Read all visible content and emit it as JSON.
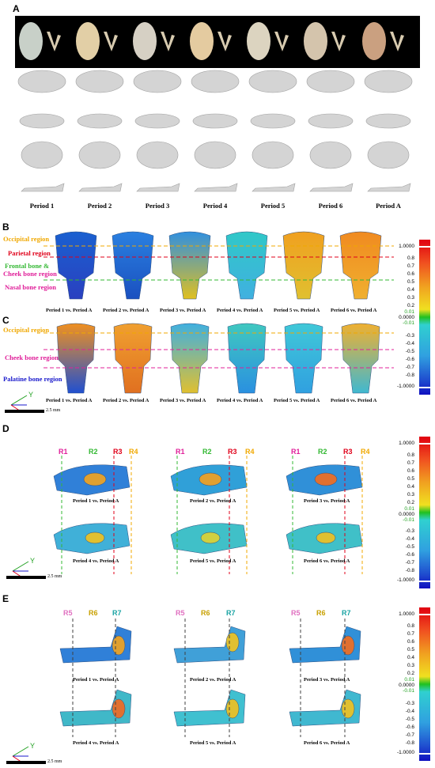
{
  "panels": {
    "A": {
      "letter": "A",
      "periods": [
        "Period 1",
        "Period 2",
        "Period 3",
        "Period 4",
        "Period 5",
        "Period 6",
        "Period A"
      ]
    },
    "B": {
      "letter": "B",
      "regions": [
        "Occipital region",
        "Parietal region",
        "Frontal bone &",
        "Cheek bone region",
        "Nasal bone region"
      ],
      "comparisons": [
        "Period 1 vs. Period A",
        "Period 2 vs. Period A",
        "Period 3 vs. Period A",
        "Period 4 vs. Period A",
        "Period 5 vs. Period A",
        "Period 6 vs. Period A"
      ]
    },
    "C": {
      "letter": "C",
      "regions": [
        "Occipital region",
        "Cheek bone region",
        "Palatine bone region"
      ],
      "comparisons": [
        "Period 1 vs. Period A",
        "Period 2 vs. Period A",
        "Period 3 vs. Period A",
        "Period 4 vs. Period A",
        "Period 5 vs. Period A",
        "Period 6 vs. Period A"
      ],
      "scale": "2.5 mm"
    },
    "D": {
      "letter": "D",
      "r_labels": [
        "R1",
        "R2",
        "R3",
        "R4"
      ],
      "comparisons": [
        "Period 1 vs. Period A",
        "Period 2 vs. Period A",
        "Period 3 vs. Period A",
        "Period 4 vs. Period A",
        "Period 5 vs. Period A",
        "Period 6 vs. Period A"
      ],
      "scale": "2.5 mm"
    },
    "E": {
      "letter": "E",
      "r_labels": [
        "R5",
        "R6",
        "R7"
      ],
      "comparisons": [
        "Period 1 vs. Period A",
        "Period 2 vs. Period A",
        "Period 3 vs. Period A",
        "Period 4 vs. Period A",
        "Period 5 vs. Period A",
        "Period 6 vs. Period A"
      ],
      "scale": "2.5 mm"
    }
  },
  "axis": {
    "x": "X",
    "y": "Y"
  },
  "colorbar": {
    "ticks": [
      "1.0000",
      "0.8",
      "0.7",
      "0.6",
      "0.5",
      "0.4",
      "0.3",
      "0.2",
      "0.01",
      "0.0000",
      "-0.01",
      "-0.3",
      "-0.4",
      "-0.5",
      "-0.6",
      "-0.7",
      "-0.8",
      "-1.0000"
    ]
  },
  "colors": {
    "occipital": "#f0a800",
    "parietal": "#e0001a",
    "frontal": "#33b833",
    "nasal": "#e0209a",
    "palatine": "#1a1acc",
    "r1": "#e0209a",
    "r2": "#33b833",
    "r3": "#e0001a",
    "r4": "#f0a800",
    "r5": "#e070c0",
    "r6": "#c8a000",
    "r7": "#1aa3a3"
  }
}
